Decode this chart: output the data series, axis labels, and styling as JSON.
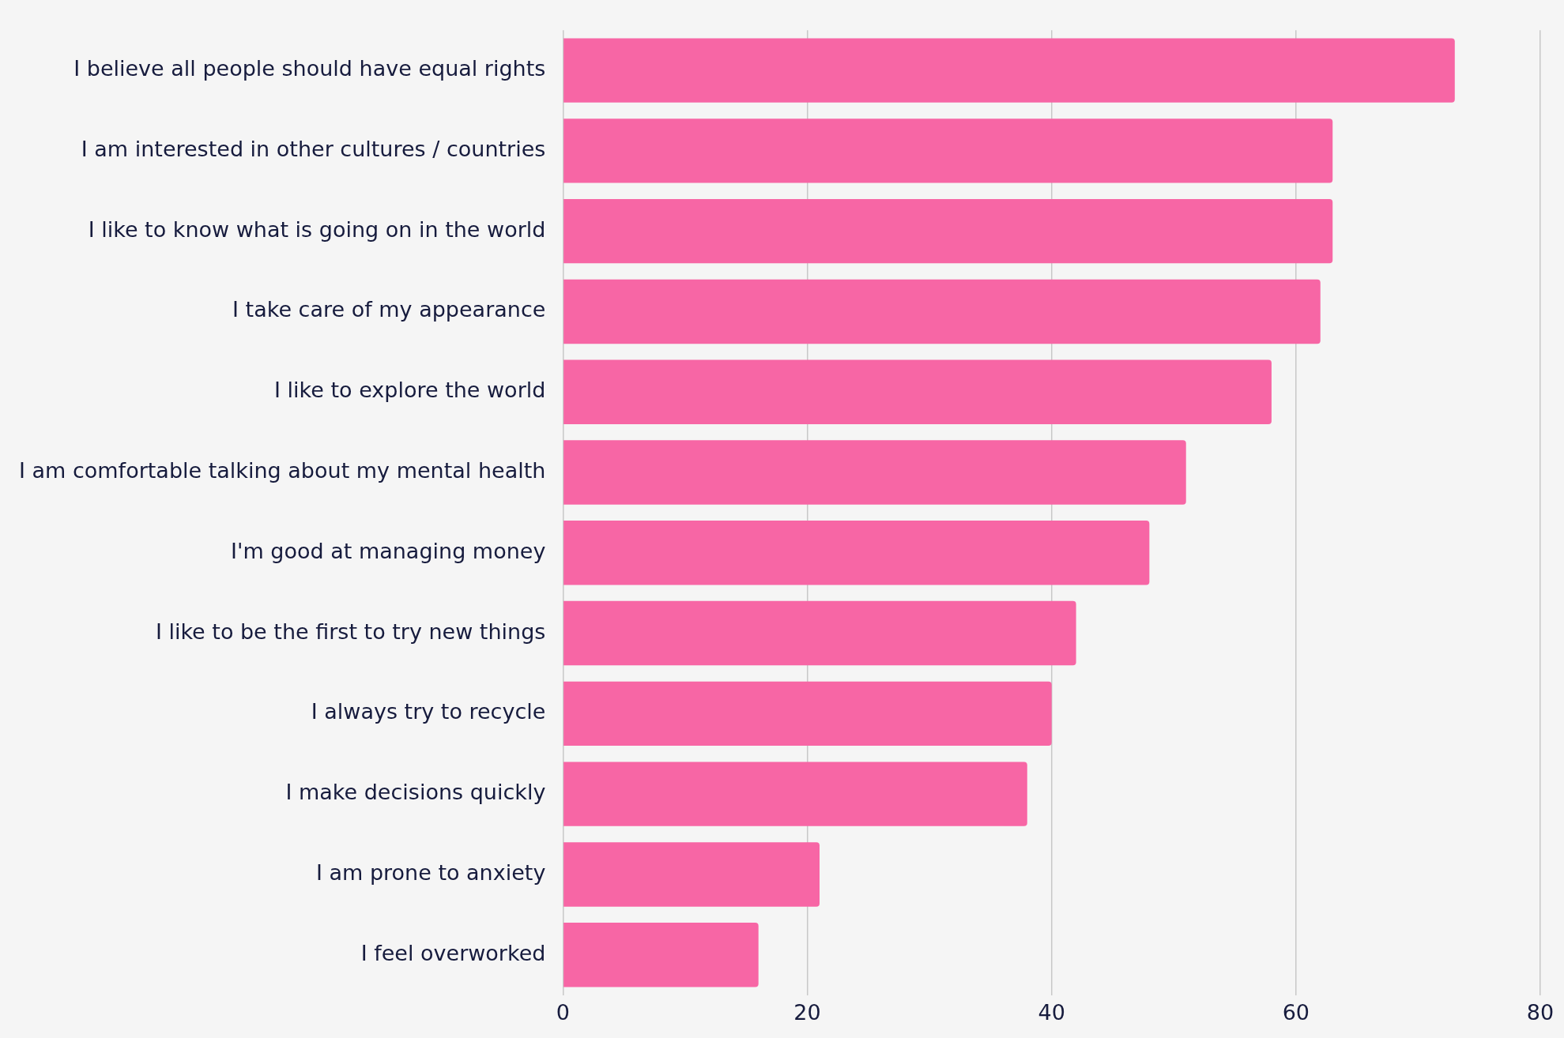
{
  "chart_data": {
    "type": "bar",
    "orientation": "horizontal",
    "categories": [
      "I believe all people should have equal rights",
      "I am interested in other cultures / countries",
      "I like to know what is going on in the world",
      "I take care of my appearance",
      "I like to explore the world",
      "I am comfortable talking about my mental health",
      "I'm good at managing money",
      "I like to be the first to try new things",
      "I always try to recycle",
      "I make decisions quickly",
      "I am prone to anxiety",
      "I feel overworked"
    ],
    "values": [
      73,
      63,
      63,
      62,
      58,
      51,
      48,
      42,
      40,
      38,
      21,
      16
    ],
    "color": "#f766a5",
    "xlim": [
      0,
      80
    ],
    "xticks": [
      0,
      20,
      40,
      60,
      80
    ],
    "grid": "x",
    "legend": false
  }
}
